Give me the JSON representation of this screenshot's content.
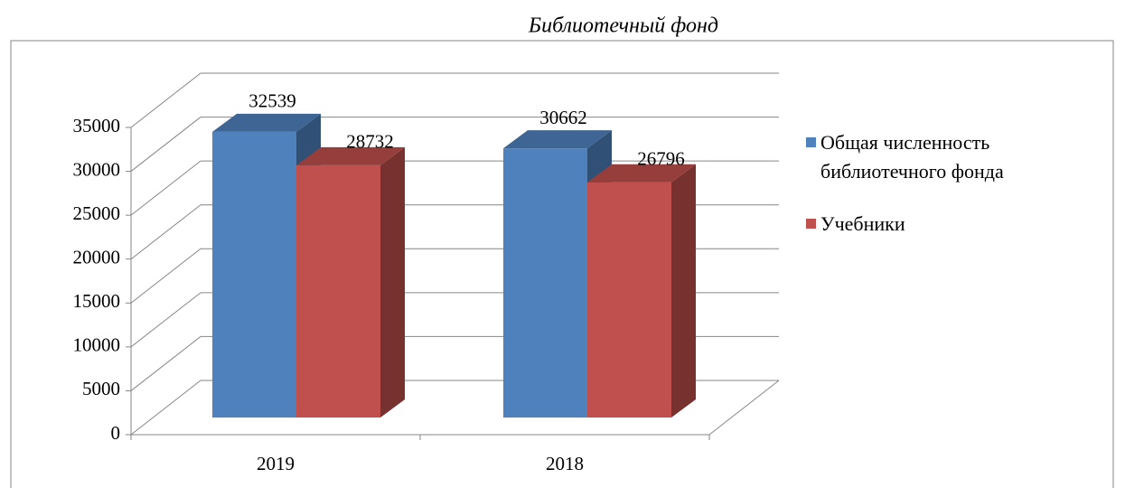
{
  "chart_data": {
    "type": "bar3d",
    "title": "Библиотечный фонд",
    "categories": [
      "2019",
      "2018"
    ],
    "series": [
      {
        "name": "Общая численность библиотечного фонда",
        "color": "#4f81bd",
        "values": [
          32539,
          30662
        ]
      },
      {
        "name": "Учебники",
        "color": "#c0504d",
        "values": [
          28732,
          26796
        ]
      }
    ],
    "ylim": [
      0,
      35000
    ],
    "yticks": [
      0,
      5000,
      10000,
      15000,
      20000,
      25000,
      30000,
      35000
    ],
    "grid": true,
    "legend": "right"
  }
}
